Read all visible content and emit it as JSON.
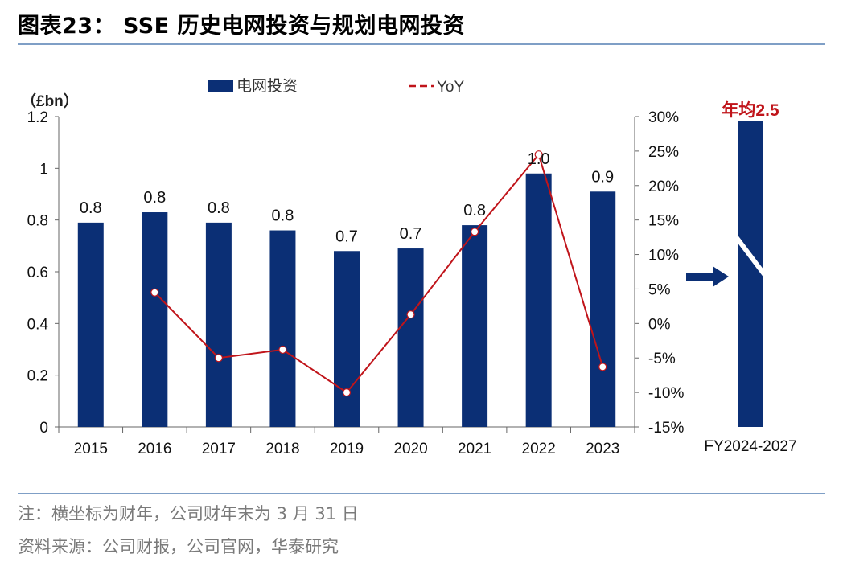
{
  "title": "图表23： SSE 历史电网投资与规划电网投资",
  "note": "注：横坐标为财年，公司财年末为 3 月 31 日",
  "source": "资料来源：公司财报，公司官网，华泰研究",
  "colors": {
    "bar": "#0b2f75",
    "line": "#c0141a",
    "highlight": "#c0141a",
    "rule": "#7f9fc6"
  },
  "chart_data": {
    "type": "bar",
    "unit_label": "（£bn）",
    "categories": [
      "2015",
      "2016",
      "2017",
      "2018",
      "2019",
      "2020",
      "2021",
      "2022",
      "2023"
    ],
    "series": [
      {
        "name": "电网投资",
        "type": "bar",
        "axis": "left",
        "values": [
          0.79,
          0.83,
          0.79,
          0.76,
          0.68,
          0.69,
          0.78,
          0.98,
          0.91
        ],
        "labels": [
          "0.8",
          "0.8",
          "0.8",
          "0.8",
          "0.7",
          "0.7",
          "0.8",
          "1.0",
          "0.9"
        ]
      },
      {
        "name": "YoY",
        "type": "line",
        "axis": "right",
        "values": [
          null,
          4.5,
          -5.0,
          -3.8,
          -10.0,
          1.3,
          13.3,
          24.5,
          -6.3
        ]
      }
    ],
    "ylim_left": [
      0,
      1.2
    ],
    "yticks_left": [
      "0",
      "0.2",
      "0.4",
      "0.6",
      "0.8",
      "1",
      "1.2"
    ],
    "ylim_right": [
      -15,
      30
    ],
    "yticks_right": [
      "-15%",
      "-10%",
      "-5%",
      "0%",
      "5%",
      "10%",
      "15%",
      "20%",
      "25%",
      "30%"
    ],
    "side_panel": {
      "category": "FY2024-2027",
      "label": "年均2.5",
      "value": 2.5
    },
    "legend": [
      "电网投资",
      "YoY"
    ],
    "legend_position": "top"
  }
}
